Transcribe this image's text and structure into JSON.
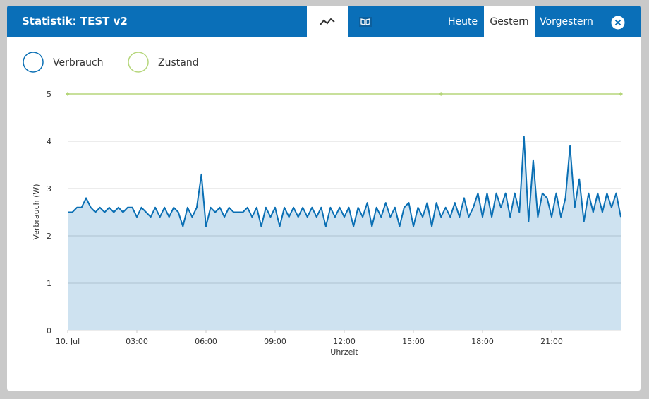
{
  "header": {
    "title": "Statistik: TEST v2",
    "tabs": [
      "Heute",
      "Gestern",
      "Vorgestern"
    ]
  },
  "chart_data": {
    "type": "line",
    "x_label": "Uhrzeit",
    "y_label": "Verbrauch (W)",
    "xlim": [
      0,
      24
    ],
    "ylim": [
      0,
      5
    ],
    "xticks": [
      {
        "value": 0,
        "label": "10. Jul"
      },
      {
        "value": 3,
        "label": "03:00"
      },
      {
        "value": 6,
        "label": "06:00"
      },
      {
        "value": 9,
        "label": "09:00"
      },
      {
        "value": 12,
        "label": "12:00"
      },
      {
        "value": 15,
        "label": "15:00"
      },
      {
        "value": 18,
        "label": "18:00"
      },
      {
        "value": 21,
        "label": "21:00"
      }
    ],
    "yticks": [
      0,
      1,
      2,
      3,
      4,
      5
    ],
    "grid": true,
    "series": [
      {
        "name": "Verbrauch",
        "color": "#0a6fb4",
        "area": true,
        "x": [
          0,
          0.2,
          0.4,
          0.6,
          0.8,
          1,
          1.2,
          1.4,
          1.6,
          1.8,
          2,
          2.2,
          2.4,
          2.6,
          2.8,
          3,
          3.2,
          3.4,
          3.6,
          3.8,
          4,
          4.2,
          4.4,
          4.6,
          4.8,
          5,
          5.2,
          5.4,
          5.6,
          5.8,
          6,
          6.2,
          6.4,
          6.6,
          6.8,
          7,
          7.2,
          7.4,
          7.6,
          7.8,
          8,
          8.2,
          8.4,
          8.6,
          8.8,
          9,
          9.2,
          9.4,
          9.6,
          9.8,
          10,
          10.2,
          10.4,
          10.6,
          10.8,
          11,
          11.2,
          11.4,
          11.6,
          11.8,
          12,
          12.2,
          12.4,
          12.6,
          12.8,
          13,
          13.2,
          13.4,
          13.6,
          13.8,
          14,
          14.2,
          14.4,
          14.6,
          14.8,
          15,
          15.2,
          15.4,
          15.6,
          15.8,
          16,
          16.2,
          16.4,
          16.6,
          16.8,
          17,
          17.2,
          17.4,
          17.6,
          17.8,
          18,
          18.2,
          18.4,
          18.6,
          18.8,
          19,
          19.2,
          19.4,
          19.6,
          19.8,
          20,
          20.2,
          20.4,
          20.6,
          20.8,
          21,
          21.2,
          21.4,
          21.6,
          21.8,
          22,
          22.2,
          22.4,
          22.6,
          22.8,
          23,
          23.2,
          23.4,
          23.6,
          23.8,
          24
        ],
        "values": [
          2.5,
          2.5,
          2.6,
          2.6,
          2.8,
          2.6,
          2.5,
          2.6,
          2.5,
          2.6,
          2.5,
          2.6,
          2.5,
          2.6,
          2.6,
          2.4,
          2.6,
          2.5,
          2.4,
          2.6,
          2.4,
          2.6,
          2.4,
          2.6,
          2.5,
          2.2,
          2.6,
          2.4,
          2.6,
          3.3,
          2.2,
          2.6,
          2.5,
          2.6,
          2.4,
          2.6,
          2.5,
          2.5,
          2.5,
          2.6,
          2.4,
          2.6,
          2.2,
          2.6,
          2.4,
          2.6,
          2.2,
          2.6,
          2.4,
          2.6,
          2.4,
          2.6,
          2.4,
          2.6,
          2.4,
          2.6,
          2.2,
          2.6,
          2.4,
          2.6,
          2.4,
          2.6,
          2.2,
          2.6,
          2.4,
          2.7,
          2.2,
          2.6,
          2.4,
          2.7,
          2.4,
          2.6,
          2.2,
          2.6,
          2.7,
          2.2,
          2.6,
          2.4,
          2.7,
          2.2,
          2.7,
          2.4,
          2.6,
          2.4,
          2.7,
          2.4,
          2.8,
          2.4,
          2.6,
          2.9,
          2.4,
          2.9,
          2.4,
          2.9,
          2.6,
          2.9,
          2.4,
          2.9,
          2.5,
          4.1,
          2.3,
          3.6,
          2.4,
          2.9,
          2.8,
          2.4,
          2.9,
          2.4,
          2.8,
          3.9,
          2.6,
          3.2,
          2.3,
          2.9,
          2.5,
          2.9,
          2.5,
          2.9,
          2.6,
          2.9,
          2.4
        ]
      },
      {
        "name": "Zustand",
        "color": "#b5d67a",
        "area": false,
        "x": [
          0,
          16.2,
          24
        ],
        "values": [
          5,
          5,
          5
        ]
      }
    ]
  }
}
